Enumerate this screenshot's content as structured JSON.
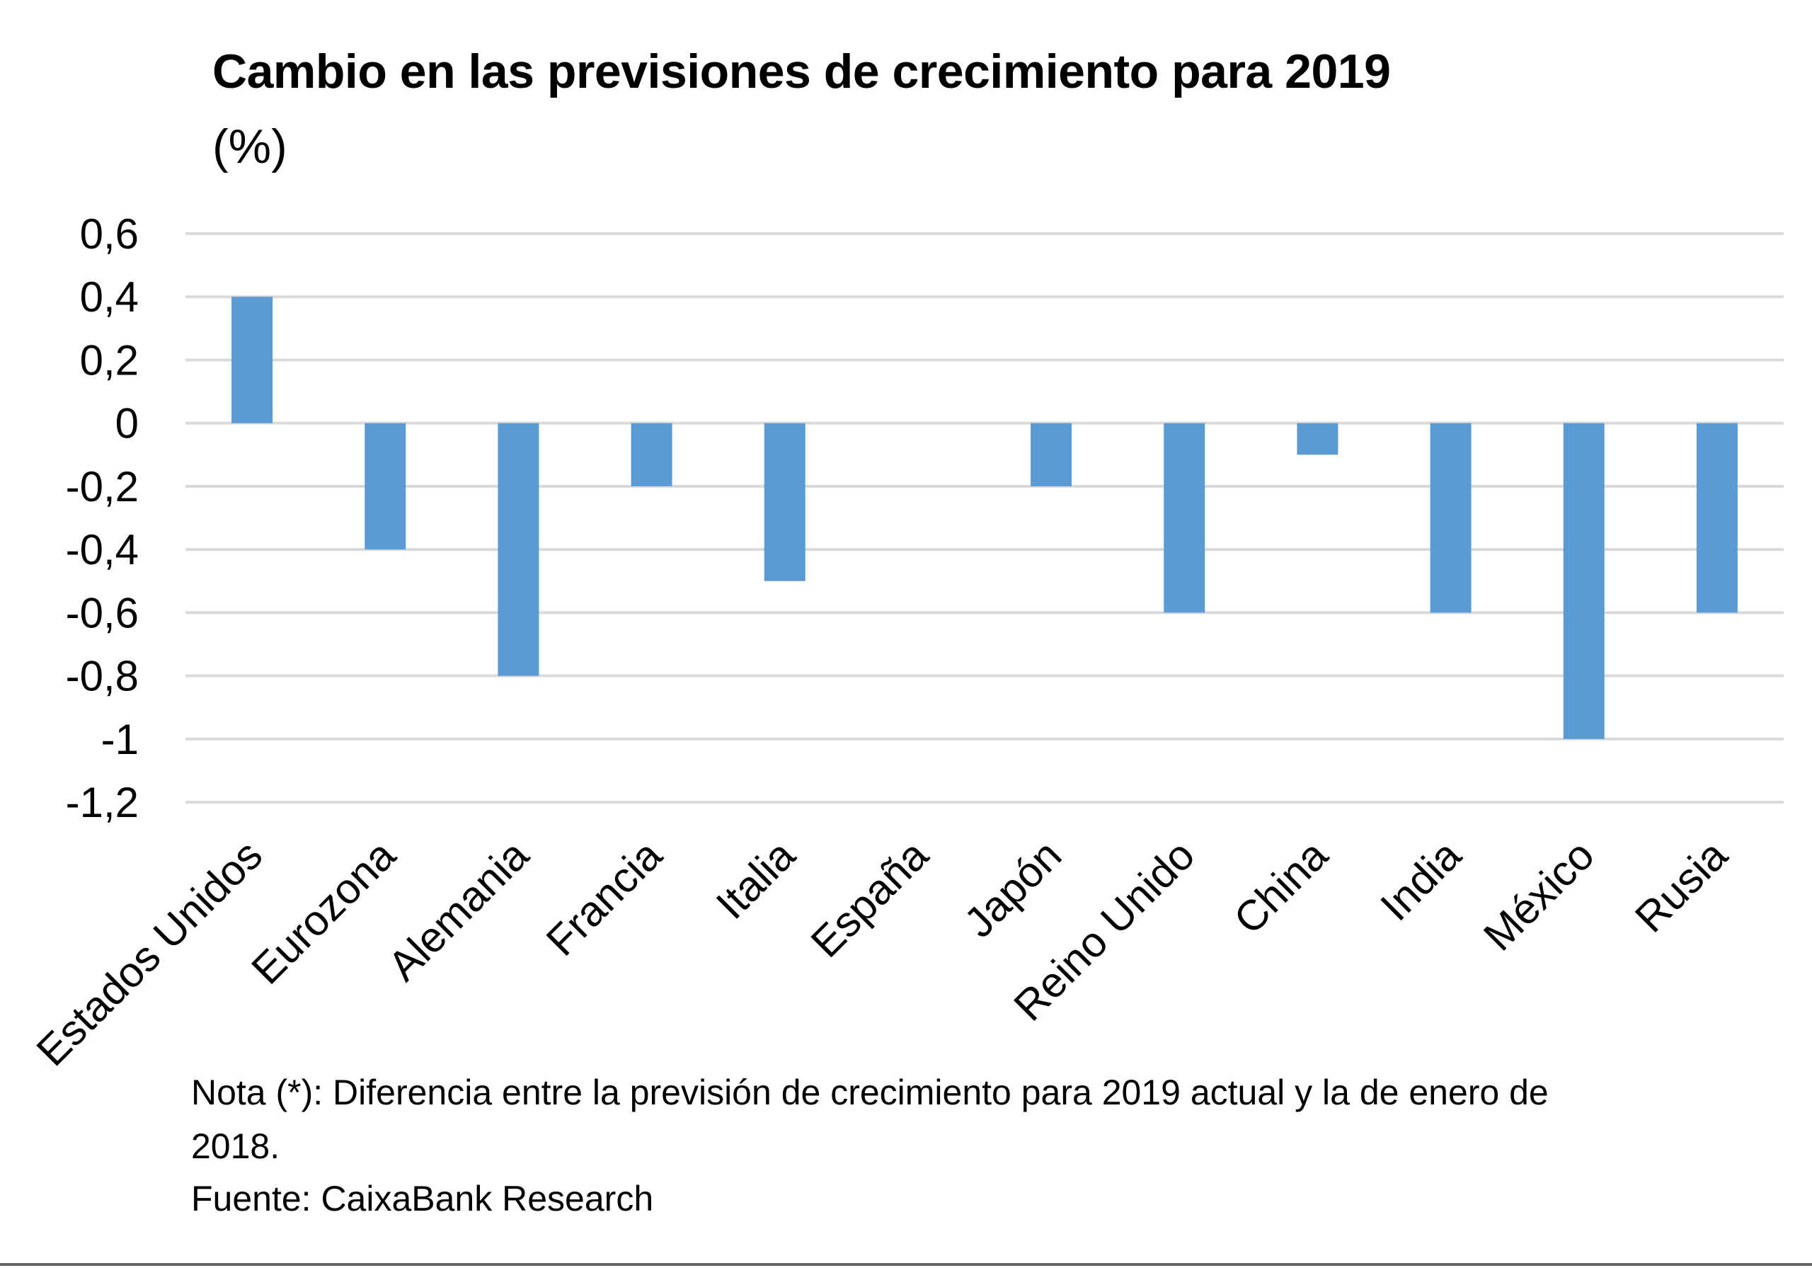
{
  "chart_data": {
    "type": "bar",
    "title": "Cambio en las previsiones de crecimiento para 2019",
    "subtitle": "(%)",
    "xlabel": "",
    "ylabel": "",
    "categories": [
      "Estados Unidos",
      "Eurozona",
      "Alemania",
      "Francia",
      "Italia",
      "España",
      "Japón",
      "Reino Unido",
      "China",
      "India",
      "México",
      "Rusia"
    ],
    "values": [
      0.4,
      -0.4,
      -0.8,
      -0.2,
      -0.5,
      0,
      -0.2,
      -0.6,
      -0.1,
      -0.6,
      -1.0,
      -0.6
    ],
    "ylim": [
      -1.2,
      0.6
    ],
    "yticks": [
      "0,6",
      "0,4",
      "0,2",
      "0",
      "-0,2",
      "-0,4",
      "-0,6",
      "-0,8",
      "-1",
      "-1,2"
    ],
    "ytick_values": [
      0.6,
      0.4,
      0.2,
      0,
      -0.2,
      -0.4,
      -0.6,
      -0.8,
      -1.0,
      -1.2
    ],
    "grid": true,
    "legend": "none",
    "bar_color": "#5b9bd5",
    "grid_color": "#d9d9d9"
  },
  "notes": {
    "line1": "Nota (*): Diferencia entre la previsión de crecimiento para 2019 actual y la de enero de",
    "line2": "2018.",
    "source": "Fuente: CaixaBank Research"
  }
}
